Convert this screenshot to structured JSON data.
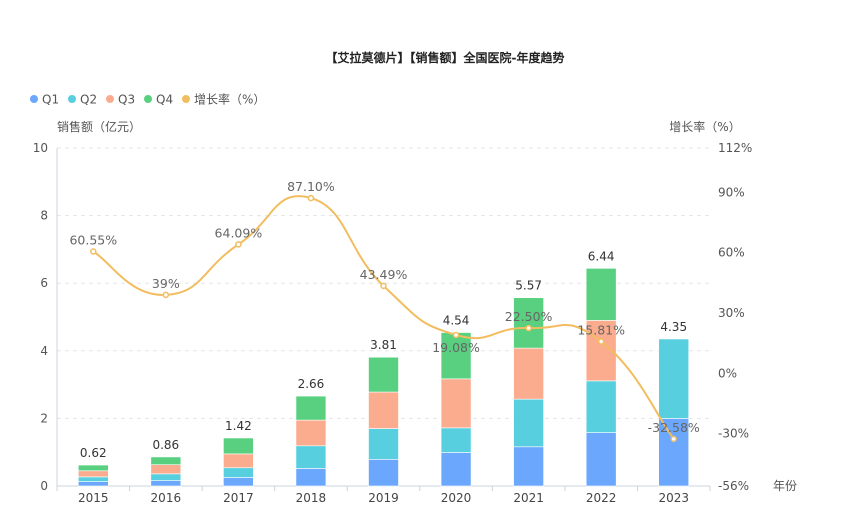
{
  "chart_data": {
    "type": "bar",
    "title": "【艾拉莫德片】【销售额】全国医院-年度趋势",
    "xlabel": "年份",
    "ylabel": "销售额（亿元）",
    "y2label": "增长率（%）",
    "categories": [
      "2015",
      "2016",
      "2017",
      "2018",
      "2019",
      "2020",
      "2021",
      "2022",
      "2023"
    ],
    "ylim": [
      0,
      10
    ],
    "yticks": [
      0,
      2,
      4,
      6,
      8,
      10
    ],
    "y2lim": [
      -56,
      112
    ],
    "y2ticks": [
      -56,
      -30,
      0,
      30,
      60,
      90,
      112
    ],
    "legend_position": "top-left",
    "grid": true,
    "series": [
      {
        "name": "Q1",
        "color": "#6ba7fd",
        "values": [
          0.13,
          0.16,
          0.25,
          0.52,
          0.79,
          0.99,
          1.16,
          1.58,
          2.0
        ]
      },
      {
        "name": "Q2",
        "color": "#58cfdf",
        "values": [
          0.14,
          0.2,
          0.29,
          0.67,
          0.91,
          0.73,
          1.41,
          1.53,
          2.35
        ]
      },
      {
        "name": "Q3",
        "color": "#fbab8e",
        "values": [
          0.18,
          0.27,
          0.41,
          0.76,
          1.08,
          1.45,
          1.51,
          1.79,
          null
        ]
      },
      {
        "name": "Q4",
        "color": "#58d07f",
        "values": [
          0.17,
          0.23,
          0.47,
          0.71,
          1.03,
          1.37,
          1.49,
          1.54,
          null
        ]
      }
    ],
    "totals": [
      "0.62",
      "0.86",
      "1.42",
      "2.66",
      "3.81",
      "4.54",
      "5.57",
      "6.44",
      "4.35"
    ],
    "growth": {
      "name": "增长率（%）",
      "color": "#f2bd5f",
      "values": [
        60.55,
        39,
        64.09,
        87.1,
        43.49,
        19.08,
        22.5,
        15.81,
        -32.58
      ],
      "labels": [
        "60.55%",
        "39%",
        "64.09%",
        "87.10%",
        "43.49%",
        "19.08%",
        "22.50%",
        "15.81%",
        "-32.58%"
      ]
    }
  }
}
